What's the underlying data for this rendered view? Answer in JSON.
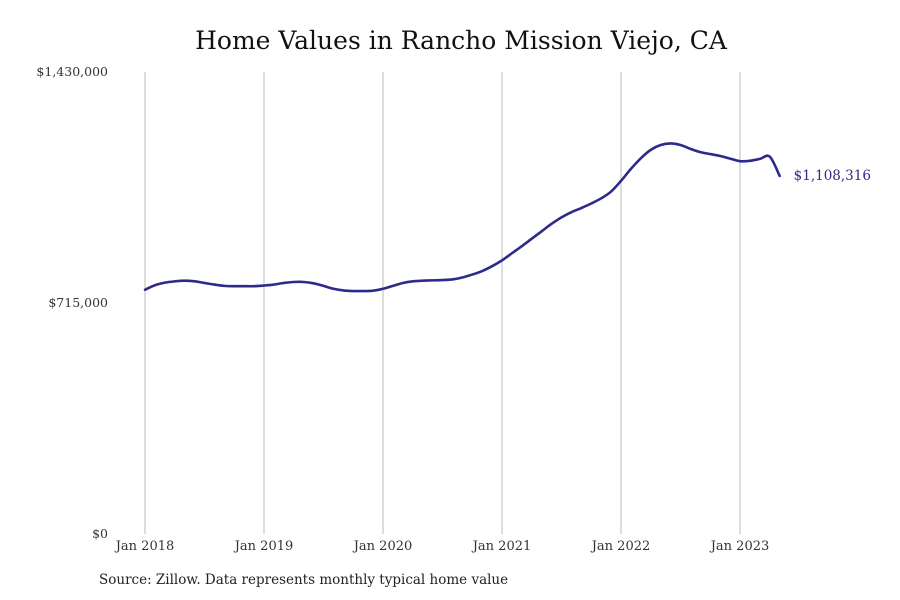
{
  "chart_data": {
    "type": "line",
    "title": "Home Values in Rancho Mission Viejo, CA",
    "xlabel": "",
    "ylabel": "",
    "ylim": [
      0,
      1430000
    ],
    "xlim": [
      "2018-01",
      "2024-01"
    ],
    "y_ticks": [
      "$0",
      "$715,000",
      "$1,430,000"
    ],
    "y_tick_values": [
      0,
      715000,
      1430000
    ],
    "x_ticks": [
      "Jan 2018",
      "Jan 2019",
      "Jan 2020",
      "Jan 2021",
      "Jan 2022",
      "Jan 2023"
    ],
    "x_tick_values": [
      "2018-01",
      "2019-01",
      "2020-01",
      "2021-01",
      "2022-01",
      "2023-01"
    ],
    "grid": "vertical lines at x ticks",
    "line_color": "#2e2a8c",
    "grid_color": "#bbbbbb",
    "end_label": "$1,108,316",
    "series": [
      {
        "x": [
          "2018-01",
          "2018-02",
          "2018-03",
          "2018-04",
          "2018-05",
          "2018-06",
          "2018-07",
          "2018-08",
          "2018-09",
          "2018-10",
          "2018-11",
          "2018-12",
          "2019-01",
          "2019-02",
          "2019-03",
          "2019-04",
          "2019-05",
          "2019-06",
          "2019-07",
          "2019-08",
          "2019-09",
          "2019-10",
          "2019-11",
          "2019-12",
          "2020-01",
          "2020-02",
          "2020-03",
          "2020-04",
          "2020-05",
          "2020-06",
          "2020-07",
          "2020-08",
          "2020-09",
          "2020-10",
          "2020-11",
          "2020-12",
          "2021-01",
          "2021-02",
          "2021-03",
          "2021-04",
          "2021-05",
          "2021-06",
          "2021-07",
          "2021-08",
          "2021-09",
          "2021-10",
          "2021-11",
          "2021-12",
          "2022-01",
          "2022-02",
          "2022-03",
          "2022-04",
          "2022-05",
          "2022-06",
          "2022-07",
          "2022-08",
          "2022-09",
          "2022-10",
          "2022-11",
          "2022-12",
          "2023-01",
          "2023-02",
          "2023-03",
          "2023-04",
          "2023-05"
        ],
        "values": [
          756000,
          770000,
          778000,
          782000,
          784000,
          782000,
          777000,
          772000,
          768000,
          767000,
          767000,
          767000,
          769000,
          772000,
          777000,
          780000,
          780000,
          776000,
          768000,
          759000,
          754000,
          752000,
          752000,
          753000,
          759000,
          768000,
          777000,
          782000,
          784000,
          785000,
          786000,
          788000,
          794000,
          803000,
          814000,
          829000,
          847000,
          869000,
          891000,
          914000,
          937000,
          960000,
          980000,
          996000,
          1009000,
          1023000,
          1039000,
          1060000,
          1093000,
          1130000,
          1163000,
          1189000,
          1204000,
          1209000,
          1204000,
          1192000,
          1182000,
          1176000,
          1170000,
          1162000,
          1154000,
          1155000,
          1161000,
          1168000,
          1108316
        ]
      }
    ],
    "notes_source": "Source: Zillow. Data represents monthly typical home value"
  }
}
